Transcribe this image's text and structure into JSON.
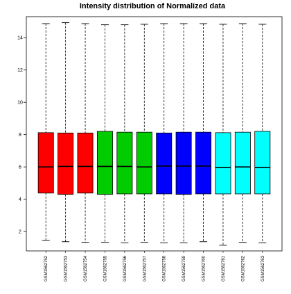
{
  "chart_data": {
    "type": "box",
    "title": "Intensity distribution of Normalized data",
    "xlabel": "",
    "ylabel": "",
    "ylim": [
      0.8,
      15.3
    ],
    "y_ticks": [
      2,
      4,
      6,
      8,
      10,
      12,
      14
    ],
    "grid": false,
    "categories": [
      "GSM1562752",
      "GSM1562753",
      "GSM1562754",
      "GSM1562755",
      "GSM1562756",
      "GSM1562757",
      "GSM1562758",
      "GSM1562759",
      "GSM1562760",
      "GSM1562761",
      "GSM1562762",
      "GSM1562763"
    ],
    "series": [
      {
        "values": [
          {
            "min": 1.45,
            "q1": 4.38,
            "median": 6.0,
            "q3": 8.12,
            "max": 14.87
          },
          {
            "min": 1.37,
            "q1": 4.3,
            "median": 6.03,
            "q3": 8.1,
            "max": 14.93
          },
          {
            "min": 1.33,
            "q1": 4.38,
            "median": 6.03,
            "q3": 8.1,
            "max": 14.87
          },
          {
            "min": 1.33,
            "q1": 4.3,
            "median": 6.03,
            "q3": 8.2,
            "max": 14.8
          },
          {
            "min": 1.3,
            "q1": 4.33,
            "median": 6.03,
            "q3": 8.15,
            "max": 14.8
          },
          {
            "min": 1.33,
            "q1": 4.33,
            "median": 6.0,
            "q3": 8.15,
            "max": 14.83
          },
          {
            "min": 1.3,
            "q1": 4.33,
            "median": 6.05,
            "q3": 8.1,
            "max": 14.87
          },
          {
            "min": 1.3,
            "q1": 4.3,
            "median": 6.05,
            "q3": 8.15,
            "max": 14.87
          },
          {
            "min": 1.37,
            "q1": 4.33,
            "median": 6.05,
            "q3": 8.15,
            "max": 14.87
          },
          {
            "min": 1.15,
            "q1": 4.33,
            "median": 5.97,
            "q3": 8.12,
            "max": 14.83
          },
          {
            "min": 1.33,
            "q1": 4.33,
            "median": 6.0,
            "q3": 8.15,
            "max": 14.87
          },
          {
            "min": 1.3,
            "q1": 4.33,
            "median": 5.97,
            "q3": 8.2,
            "max": 14.83
          }
        ]
      }
    ],
    "box_colors": [
      "#ff0000",
      "#ff0000",
      "#ff0000",
      "#00cc00",
      "#00cc00",
      "#00cc00",
      "#0000ff",
      "#0000ff",
      "#0000ff",
      "#00ffff",
      "#00ffff",
      "#00ffff"
    ]
  }
}
